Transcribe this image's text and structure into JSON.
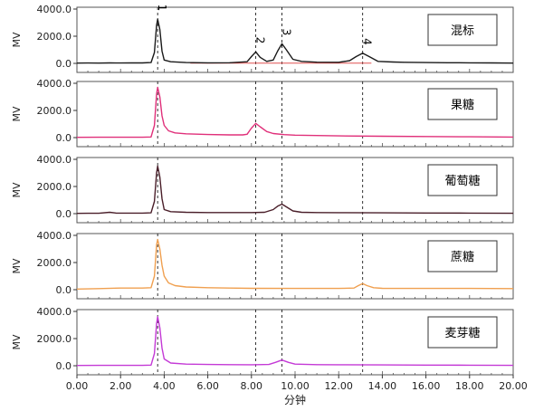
{
  "chart_data": {
    "type": "line",
    "x_axis": {
      "label": "分钟",
      "min": 0,
      "max": 20,
      "ticks": [
        "0.00",
        "2.00",
        "4.00",
        "6.00",
        "8.00",
        "10.00",
        "12.00",
        "14.00",
        "16.00",
        "18.00",
        "20.00"
      ]
    },
    "reference_lines": [
      3.7,
      8.2,
      9.4,
      13.1
    ],
    "panels": [
      {
        "legend": "混标",
        "ylabel": "MV",
        "ylim": [
          0,
          4000
        ],
        "yticks": [
          "4000.0",
          "2000.0",
          "0.0"
        ],
        "color": "#1a1a1a",
        "baseline_color": "#e05050",
        "peak_labels": [
          {
            "label": "1",
            "x": 3.7
          },
          {
            "label": "2",
            "x": 8.2
          },
          {
            "label": "3",
            "x": 9.4
          },
          {
            "label": "4",
            "x": 13.1
          }
        ],
        "points": [
          [
            0,
            20
          ],
          [
            0.5,
            25
          ],
          [
            1,
            20
          ],
          [
            1.5,
            30
          ],
          [
            2,
            25
          ],
          [
            2.5,
            40
          ],
          [
            3,
            30
          ],
          [
            3.4,
            60
          ],
          [
            3.55,
            800
          ],
          [
            3.65,
            2800
          ],
          [
            3.7,
            3250
          ],
          [
            3.8,
            2500
          ],
          [
            3.9,
            900
          ],
          [
            4.0,
            250
          ],
          [
            4.3,
            120
          ],
          [
            5,
            60
          ],
          [
            6,
            40
          ],
          [
            7,
            50
          ],
          [
            7.8,
            120
          ],
          [
            8.0,
            500
          ],
          [
            8.2,
            850
          ],
          [
            8.4,
            450
          ],
          [
            8.7,
            150
          ],
          [
            9.0,
            250
          ],
          [
            9.2,
            900
          ],
          [
            9.4,
            1450
          ],
          [
            9.6,
            1000
          ],
          [
            9.9,
            300
          ],
          [
            10.3,
            150
          ],
          [
            11,
            90
          ],
          [
            12,
            80
          ],
          [
            12.5,
            200
          ],
          [
            12.8,
            500
          ],
          [
            13.1,
            750
          ],
          [
            13.4,
            500
          ],
          [
            13.8,
            150
          ],
          [
            14.5,
            100
          ],
          [
            15,
            80
          ],
          [
            16,
            60
          ],
          [
            17,
            50
          ],
          [
            18,
            40
          ],
          [
            19,
            30
          ],
          [
            20,
            20
          ]
        ]
      },
      {
        "legend": "果糖",
        "ylabel": "MV",
        "ylim": [
          0,
          4000
        ],
        "yticks": [
          "4000.0",
          "2000.0",
          "0.0"
        ],
        "color": "#e0307a",
        "points": [
          [
            0,
            20
          ],
          [
            1,
            25
          ],
          [
            2,
            30
          ],
          [
            3,
            30
          ],
          [
            3.4,
            50
          ],
          [
            3.55,
            900
          ],
          [
            3.65,
            3200
          ],
          [
            3.7,
            3700
          ],
          [
            3.8,
            3000
          ],
          [
            3.9,
            1600
          ],
          [
            4.0,
            900
          ],
          [
            4.2,
            500
          ],
          [
            4.5,
            350
          ],
          [
            5,
            280
          ],
          [
            6,
            230
          ],
          [
            7,
            200
          ],
          [
            7.6,
            200
          ],
          [
            7.8,
            250
          ],
          [
            8.0,
            700
          ],
          [
            8.2,
            1050
          ],
          [
            8.4,
            800
          ],
          [
            8.7,
            450
          ],
          [
            9.0,
            300
          ],
          [
            9.5,
            220
          ],
          [
            10,
            180
          ],
          [
            12,
            130
          ],
          [
            14,
            100
          ],
          [
            16,
            80
          ],
          [
            18,
            60
          ],
          [
            20,
            40
          ]
        ]
      },
      {
        "legend": "葡萄糖",
        "ylabel": "MV",
        "ylim": [
          0,
          4000
        ],
        "yticks": [
          "4000.0",
          "2000.0",
          "0.0"
        ],
        "color": "#4a1f2a",
        "points": [
          [
            0,
            20
          ],
          [
            0.5,
            30
          ],
          [
            1,
            25
          ],
          [
            1.5,
            100
          ],
          [
            1.8,
            40
          ],
          [
            2.5,
            40
          ],
          [
            3,
            40
          ],
          [
            3.4,
            60
          ],
          [
            3.55,
            900
          ],
          [
            3.65,
            3000
          ],
          [
            3.7,
            3500
          ],
          [
            3.8,
            2700
          ],
          [
            3.9,
            1100
          ],
          [
            4.0,
            300
          ],
          [
            4.3,
            150
          ],
          [
            5,
            100
          ],
          [
            6,
            80
          ],
          [
            7,
            80
          ],
          [
            8,
            80
          ],
          [
            8.6,
            100
          ],
          [
            9.0,
            300
          ],
          [
            9.2,
            550
          ],
          [
            9.4,
            700
          ],
          [
            9.6,
            500
          ],
          [
            9.9,
            200
          ],
          [
            10.3,
            100
          ],
          [
            11,
            80
          ],
          [
            12,
            70
          ],
          [
            14,
            60
          ],
          [
            16,
            50
          ],
          [
            18,
            40
          ],
          [
            20,
            30
          ]
        ]
      },
      {
        "legend": "蔗糖",
        "ylabel": "MV",
        "ylim": [
          0,
          4000
        ],
        "yticks": [
          "4000.0",
          "2000.0",
          "0.0"
        ],
        "color": "#f0a050",
        "points": [
          [
            0,
            50
          ],
          [
            1,
            80
          ],
          [
            2,
            120
          ],
          [
            3,
            120
          ],
          [
            3.4,
            150
          ],
          [
            3.55,
            1000
          ],
          [
            3.65,
            3300
          ],
          [
            3.7,
            3700
          ],
          [
            3.8,
            3000
          ],
          [
            3.9,
            1800
          ],
          [
            4.0,
            1000
          ],
          [
            4.2,
            500
          ],
          [
            4.5,
            300
          ],
          [
            5,
            200
          ],
          [
            6,
            150
          ],
          [
            7,
            120
          ],
          [
            8,
            100
          ],
          [
            10,
            90
          ],
          [
            12,
            90
          ],
          [
            12.7,
            120
          ],
          [
            12.9,
            300
          ],
          [
            13.1,
            450
          ],
          [
            13.3,
            300
          ],
          [
            13.6,
            150
          ],
          [
            14,
            100
          ],
          [
            16,
            90
          ],
          [
            18,
            90
          ],
          [
            20,
            80
          ]
        ]
      },
      {
        "legend": "麦芽糖",
        "ylabel": "MV",
        "ylim": [
          0,
          4000
        ],
        "yticks": [
          "4000.0",
          "2000.0",
          "0.0"
        ],
        "color": "#c43ad6",
        "points": [
          [
            0,
            20
          ],
          [
            1,
            25
          ],
          [
            2,
            30
          ],
          [
            3,
            30
          ],
          [
            3.4,
            50
          ],
          [
            3.55,
            900
          ],
          [
            3.65,
            3100
          ],
          [
            3.7,
            3600
          ],
          [
            3.8,
            2800
          ],
          [
            3.9,
            1300
          ],
          [
            4.0,
            500
          ],
          [
            4.3,
            200
          ],
          [
            5,
            120
          ],
          [
            6,
            90
          ],
          [
            7,
            80
          ],
          [
            8,
            70
          ],
          [
            8.8,
            90
          ],
          [
            9.1,
            250
          ],
          [
            9.4,
            420
          ],
          [
            9.7,
            250
          ],
          [
            10,
            120
          ],
          [
            11,
            80
          ],
          [
            12,
            70
          ],
          [
            14,
            60
          ],
          [
            16,
            50
          ],
          [
            18,
            40
          ],
          [
            20,
            30
          ]
        ]
      }
    ]
  }
}
